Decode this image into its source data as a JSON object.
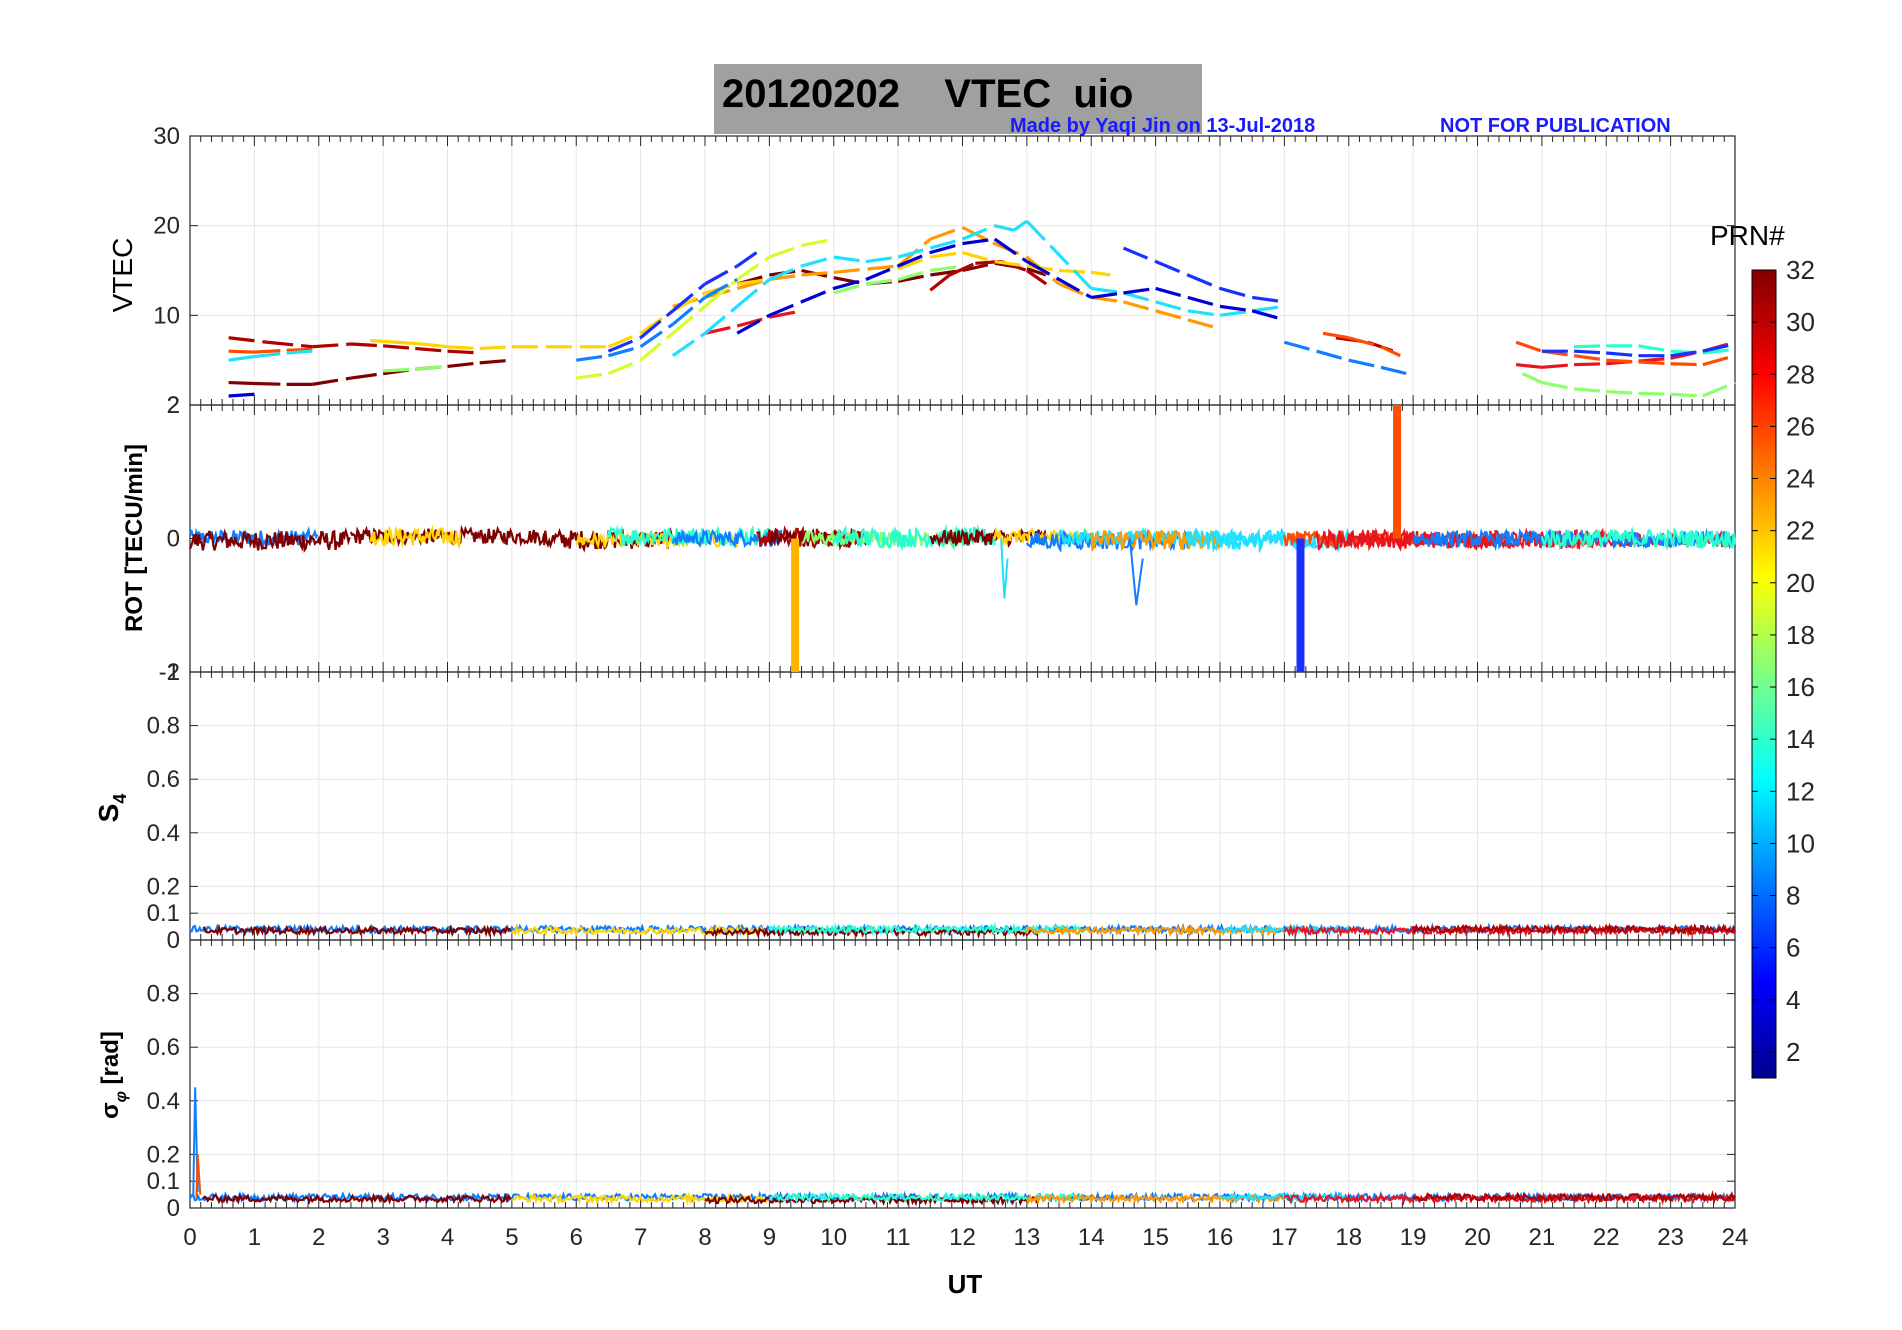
{
  "header": {
    "title": "20120202    VTEC  uio",
    "credit": "Made by Yaqi Jin on 13-Jul-2018",
    "notice": "NOT FOR PUBLICATION"
  },
  "colorbar": {
    "title": "PRN#",
    "ticks": [
      "32",
      "30",
      "28",
      "26",
      "24",
      "22",
      "20",
      "18",
      "16",
      "14",
      "12",
      "10",
      "8",
      "6",
      "4",
      "2"
    ],
    "range": [
      1,
      32
    ]
  },
  "chart_data": [
    {
      "type": "line",
      "panel": "vtec",
      "ylabel": "VTEC",
      "xlim": [
        0,
        24
      ],
      "ylim": [
        0,
        30
      ],
      "yticks": [
        "30",
        "20",
        "10",
        "2"
      ],
      "series": [
        {
          "name": "PRN 32",
          "color": "#7f0000",
          "x": [
            0.6,
            1.0,
            1.5,
            1.9,
            2.5,
            3.0,
            3.5,
            4.0,
            4.5,
            5.0,
            8.5,
            9.0,
            9.5,
            10.0,
            10.5,
            11.0,
            11.5,
            12.0,
            12.5,
            13.0,
            13.3
          ],
          "y": [
            2.5,
            2.4,
            2.3,
            2.3,
            3.0,
            3.5,
            4.0,
            4.3,
            4.7,
            5.0,
            13.5,
            14.5,
            15.0,
            14.2,
            13.5,
            13.8,
            14.5,
            15.0,
            15.8,
            15.2,
            14.5
          ]
        },
        {
          "name": "PRN 30",
          "color": "#b00000",
          "x": [
            0.6,
            1.2,
            1.9,
            2.5,
            3.0,
            3.5,
            4.0,
            4.5,
            11.5,
            11.8,
            12.2,
            12.6,
            13.0,
            13.3,
            17.8,
            18.3,
            18.7
          ],
          "y": [
            7.5,
            7.0,
            6.5,
            6.8,
            6.6,
            6.3,
            6.0,
            5.8,
            12.8,
            14.5,
            15.8,
            16.0,
            15.0,
            13.5,
            7.5,
            7.0,
            6.0
          ]
        },
        {
          "name": "PRN 28",
          "color": "#e8141e",
          "x": [
            8.0,
            8.5,
            9.0,
            9.5,
            20.6,
            21.0,
            21.5,
            22.0,
            22.5,
            23.0,
            23.5,
            24.0
          ],
          "y": [
            8.0,
            8.8,
            9.8,
            10.5,
            4.5,
            4.2,
            4.5,
            4.6,
            4.9,
            5.2,
            6.0,
            7.0
          ]
        },
        {
          "name": "PRN 25",
          "color": "#ff4d00",
          "x": [
            0.6,
            1.0,
            1.5,
            1.9,
            17.6,
            18.0,
            18.5,
            18.8,
            20.6,
            21.0,
            21.5,
            22.0,
            22.5,
            23.0,
            23.5,
            24.0
          ],
          "y": [
            6.0,
            5.9,
            6.1,
            6.2,
            8.0,
            7.5,
            6.5,
            5.5,
            7.0,
            6.0,
            5.5,
            5.0,
            4.8,
            4.6,
            4.5,
            5.5
          ]
        },
        {
          "name": "PRN 23",
          "color": "#ff9a00",
          "x": [
            7.5,
            8.0,
            8.5,
            9.0,
            9.5,
            10.0,
            11.0,
            11.5,
            12.0,
            12.5,
            13.0,
            13.5,
            14.0,
            14.5,
            15.0,
            15.5,
            16.0
          ],
          "y": [
            11.0,
            12.0,
            13.0,
            14.0,
            14.5,
            14.8,
            15.5,
            18.5,
            19.8,
            18.0,
            16.5,
            13.5,
            12.0,
            11.5,
            10.5,
            9.5,
            8.5
          ]
        },
        {
          "name": "PRN 21",
          "color": "#ffd400",
          "x": [
            2.8,
            3.2,
            3.6,
            4.0,
            4.5,
            5.0,
            6.5,
            7.0,
            7.5,
            8.0,
            8.5,
            9.0,
            11.0,
            11.5,
            12.0,
            12.5,
            13.0,
            13.5,
            14.0,
            14.3
          ],
          "y": [
            7.2,
            7.0,
            6.8,
            6.5,
            6.3,
            6.5,
            6.5,
            8.0,
            10.5,
            12.5,
            13.5,
            14.0,
            15.2,
            16.5,
            17.0,
            16.0,
            15.5,
            15.0,
            14.8,
            14.5
          ]
        },
        {
          "name": "PRN 19",
          "color": "#d6ff29",
          "x": [
            6.0,
            6.5,
            7.0,
            7.5,
            8.0,
            8.5,
            9.0,
            9.5,
            10.0
          ],
          "y": [
            3.0,
            3.5,
            5.0,
            8.0,
            11.0,
            14.0,
            16.5,
            17.8,
            18.5
          ]
        },
        {
          "name": "PRN 17",
          "color": "#8cff6b",
          "x": [
            3.0,
            3.5,
            4.0,
            10.0,
            10.5,
            11.0,
            11.5,
            12.0,
            20.7,
            21.0,
            21.5,
            22.0,
            22.5,
            23.0,
            23.5,
            24.0
          ],
          "y": [
            3.8,
            4.0,
            4.3,
            12.5,
            13.5,
            14.0,
            15.0,
            15.5,
            3.5,
            2.5,
            1.8,
            1.5,
            1.3,
            1.2,
            1.0,
            2.5
          ]
        },
        {
          "name": "PRN 14",
          "color": "#29ffce",
          "x": [
            21.5,
            22.0,
            22.5,
            23.0,
            23.5,
            24.0
          ],
          "y": [
            6.5,
            6.6,
            6.6,
            6.0,
            5.8,
            6.2
          ]
        },
        {
          "name": "PRN 12",
          "color": "#1fe0ff",
          "x": [
            0.6,
            1.0,
            1.5,
            1.9,
            7.5,
            8.0,
            8.5,
            9.0,
            9.5,
            10.0,
            10.5,
            11.0,
            11.5,
            12.0,
            12.5,
            12.8,
            13.0,
            14.0,
            14.5,
            15.0,
            15.5,
            16.0,
            16.5,
            17.0
          ],
          "y": [
            5.0,
            5.4,
            5.8,
            6.0,
            5.5,
            8.0,
            11.0,
            14.0,
            15.5,
            16.5,
            16.0,
            16.5,
            17.5,
            18.5,
            20.0,
            19.5,
            20.5,
            13.0,
            12.5,
            11.5,
            10.5,
            10.0,
            10.5,
            11.0
          ]
        },
        {
          "name": "PRN 9",
          "color": "#0f7fff",
          "x": [
            6.0,
            6.5,
            7.0,
            7.5,
            8.0,
            8.5,
            17.0,
            17.5,
            18.0,
            18.5,
            18.9
          ],
          "y": [
            5.0,
            5.5,
            6.5,
            9.0,
            12.0,
            14.0,
            7.0,
            6.0,
            5.0,
            4.2,
            3.5
          ]
        },
        {
          "name": "PRN 6",
          "color": "#1930ff",
          "x": [
            6.5,
            7.0,
            7.5,
            8.0,
            8.5,
            8.8,
            14.5,
            15.0,
            15.5,
            16.0,
            16.5,
            17.0,
            21.0,
            21.5,
            22.0,
            22.5,
            23.0,
            23.5,
            24.0
          ],
          "y": [
            6.0,
            7.5,
            10.5,
            13.5,
            15.5,
            17.0,
            17.5,
            16.0,
            14.5,
            13.0,
            12.0,
            11.5,
            6.0,
            6.0,
            5.8,
            5.5,
            5.5,
            6.0,
            6.8
          ]
        },
        {
          "name": "PRN 3",
          "color": "#0000d6",
          "x": [
            0.6,
            1.0,
            8.5,
            9.0,
            9.5,
            10.0,
            10.5,
            11.0,
            11.5,
            12.0,
            12.5,
            13.0,
            14.0,
            14.5,
            15.0,
            15.5,
            16.0,
            16.5,
            17.0
          ],
          "y": [
            1.0,
            1.2,
            8.0,
            10.0,
            11.5,
            13.0,
            14.0,
            15.5,
            17.0,
            18.0,
            18.5,
            16.0,
            12.0,
            12.5,
            13.0,
            12.0,
            11.0,
            10.5,
            9.5
          ]
        }
      ]
    },
    {
      "type": "line",
      "panel": "rot",
      "ylabel": "ROT [TECU/min]",
      "xlim": [
        0,
        24
      ],
      "ylim": [
        -2,
        2
      ],
      "yticks": [
        "2",
        "0",
        "-2"
      ],
      "annotations": [
        {
          "desc": "spike PRN 22",
          "x": 9.4,
          "y": -2.0,
          "color": "#ffb400"
        },
        {
          "desc": "spike PRN 6",
          "x": 17.25,
          "y": -2.0,
          "color": "#1930ff"
        },
        {
          "desc": "spike PRN 25",
          "x": 18.75,
          "y": 2.0,
          "color": "#ff4d00"
        }
      ]
    },
    {
      "type": "line",
      "panel": "s4",
      "ylabel": "S4",
      "xlim": [
        0,
        24
      ],
      "ylim": [
        0,
        1
      ],
      "yticks": [
        "0.8",
        "0.6",
        "0.4",
        "0.2",
        "0.1",
        "0"
      ]
    },
    {
      "type": "line",
      "panel": "sigma-phi",
      "ylabel": "σ φ [rad]",
      "xlim": [
        0,
        24
      ],
      "ylim": [
        0,
        1
      ],
      "yticks": [
        "0.8",
        "0.6",
        "0.4",
        "0.2",
        "0.1",
        "0"
      ],
      "xlabel": "UT",
      "xticks": [
        "0",
        "1",
        "2",
        "3",
        "4",
        "5",
        "6",
        "7",
        "8",
        "9",
        "10",
        "11",
        "12",
        "13",
        "14",
        "15",
        "16",
        "17",
        "18",
        "19",
        "20",
        "21",
        "22",
        "23",
        "24"
      ]
    }
  ]
}
